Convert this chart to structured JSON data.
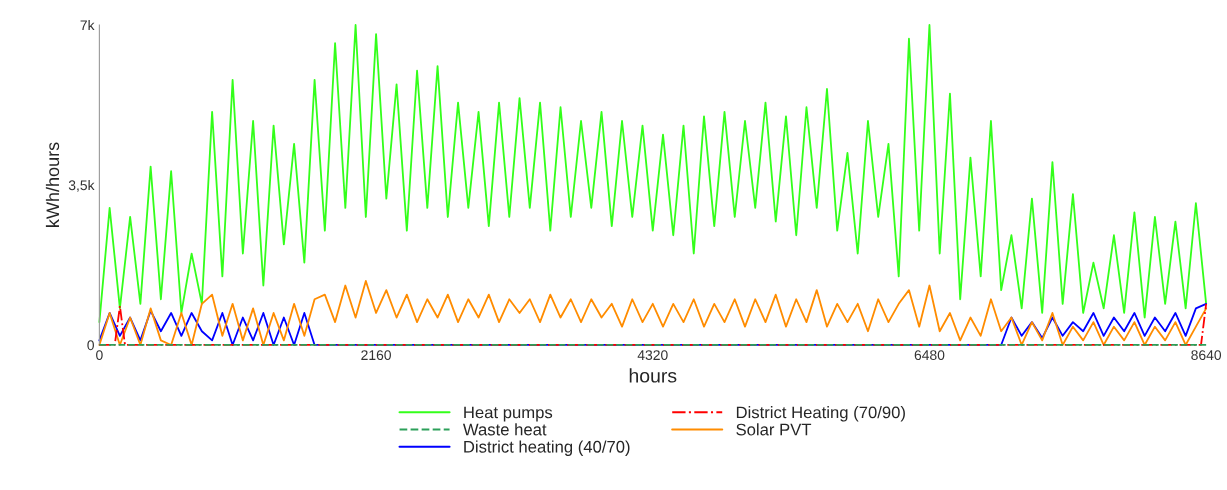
{
  "chart_data": {
    "type": "line",
    "xlabel": "hours",
    "ylabel": "kWh/hours",
    "x": [
      0,
      80,
      160,
      240,
      320,
      400,
      480,
      560,
      640,
      720,
      800,
      880,
      960,
      1040,
      1120,
      1200,
      1280,
      1360,
      1440,
      1520,
      1600,
      1680,
      1760,
      1840,
      1920,
      2000,
      2080,
      2160,
      2240,
      2320,
      2400,
      2480,
      2560,
      2640,
      2720,
      2800,
      2880,
      2960,
      3040,
      3120,
      3200,
      3280,
      3360,
      3440,
      3520,
      3600,
      3680,
      3760,
      3840,
      3920,
      4000,
      4080,
      4160,
      4240,
      4320,
      4400,
      4480,
      4560,
      4640,
      4720,
      4800,
      4880,
      4960,
      5040,
      5120,
      5200,
      5280,
      5360,
      5440,
      5520,
      5600,
      5680,
      5760,
      5840,
      5920,
      6000,
      6080,
      6160,
      6240,
      6320,
      6400,
      6480,
      6560,
      6640,
      6720,
      6800,
      6880,
      6960,
      7040,
      7120,
      7200,
      7280,
      7360,
      7440,
      7520,
      7600,
      7680,
      7760,
      7840,
      7920,
      8000,
      8080,
      8160,
      8240,
      8320,
      8400,
      8480,
      8560,
      8640
    ],
    "series": [
      {
        "name": "Heat pumps",
        "color": "#33ff1a",
        "line_style": "solid",
        "values": [
          500,
          3000,
          800,
          2800,
          900,
          3900,
          1000,
          3800,
          700,
          2000,
          900,
          5100,
          1500,
          5800,
          2000,
          4900,
          1300,
          4800,
          2200,
          4400,
          1800,
          5800,
          2500,
          6600,
          3000,
          7000,
          2800,
          6800,
          3200,
          5700,
          2500,
          6000,
          3000,
          6100,
          2800,
          5300,
          3000,
          5100,
          2600,
          5300,
          2800,
          5400,
          3000,
          5300,
          2500,
          5200,
          2800,
          4900,
          3000,
          5100,
          2600,
          4900,
          2800,
          4800,
          2500,
          4600,
          2400,
          4800,
          2000,
          5000,
          2600,
          5100,
          2800,
          4900,
          3000,
          5300,
          2700,
          5000,
          2400,
          5200,
          3000,
          5600,
          2500,
          4200,
          2000,
          4900,
          2800,
          4400,
          1500,
          6700,
          2500,
          7000,
          2000,
          5500,
          1000,
          4100,
          1500,
          4900,
          1200,
          2400,
          800,
          3200,
          700,
          4000,
          900,
          3300,
          700,
          1800,
          800,
          2400,
          700,
          2900,
          600,
          2800,
          900,
          2700,
          800,
          3100,
          900
        ]
      },
      {
        "name": "Waste heat",
        "color": "#2ca05a",
        "line_style": "dashed",
        "x": [
          0,
          8640
        ],
        "values": [
          0,
          0
        ]
      },
      {
        "name": "District heating (40/70)",
        "color": "#0000ff",
        "line_style": "solid",
        "values": [
          100,
          700,
          200,
          600,
          100,
          750,
          300,
          700,
          200,
          700,
          300,
          100,
          700,
          0,
          600,
          100,
          700,
          0,
          600,
          0,
          700,
          0,
          0,
          0,
          0,
          0,
          0,
          0,
          0,
          0,
          0,
          0,
          0,
          0,
          0,
          0,
          0,
          0,
          0,
          0,
          0,
          0,
          0,
          0,
          0,
          0,
          0,
          0,
          0,
          0,
          0,
          0,
          0,
          0,
          0,
          0,
          0,
          0,
          0,
          0,
          0,
          0,
          0,
          0,
          0,
          0,
          0,
          0,
          0,
          0,
          0,
          0,
          0,
          0,
          0,
          0,
          0,
          0,
          0,
          0,
          0,
          0,
          0,
          0,
          0,
          0,
          0,
          0,
          0,
          600,
          200,
          500,
          150,
          600,
          200,
          500,
          300,
          700,
          200,
          600,
          300,
          700,
          200,
          600,
          300,
          700,
          200,
          800,
          900
        ]
      },
      {
        "name": "District Heating (70/90)",
        "color": "#ff0000",
        "line_style": "dashdot",
        "x": [
          0,
          120,
          160,
          200,
          8600,
          8640
        ],
        "values": [
          0,
          0,
          850,
          0,
          0,
          900
        ]
      },
      {
        "name": "Solar PVT",
        "color": "#ff8c00",
        "line_style": "solid",
        "values": [
          0,
          700,
          0,
          600,
          0,
          800,
          100,
          0,
          700,
          0,
          900,
          1100,
          200,
          900,
          100,
          800,
          0,
          700,
          100,
          900,
          200,
          1000,
          1100,
          500,
          1300,
          600,
          1400,
          700,
          1200,
          600,
          1100,
          500,
          1000,
          600,
          1100,
          500,
          1000,
          600,
          1100,
          500,
          1000,
          700,
          1000,
          500,
          1100,
          600,
          1000,
          500,
          1000,
          600,
          900,
          400,
          1000,
          500,
          900,
          400,
          900,
          500,
          1000,
          400,
          900,
          500,
          1000,
          400,
          1000,
          500,
          1100,
          400,
          1000,
          500,
          1200,
          400,
          900,
          500,
          900,
          300,
          1000,
          500,
          900,
          1200,
          400,
          1300,
          300,
          700,
          100,
          600,
          200,
          1000,
          300,
          600,
          0,
          500,
          100,
          700,
          0,
          400,
          100,
          500,
          0,
          400,
          100,
          500,
          0,
          400,
          100,
          500,
          0,
          400,
          800
        ]
      }
    ],
    "xlim": [
      0,
      8640
    ],
    "xticks": [
      0,
      2160,
      4320,
      6480,
      8640
    ],
    "ylim": [
      0,
      7000
    ],
    "yticks": [
      0,
      {
        "value": 3500,
        "label": "3,5k"
      },
      {
        "value": 7000,
        "label": "7k"
      }
    ],
    "grid": false,
    "legend": "bottom"
  }
}
